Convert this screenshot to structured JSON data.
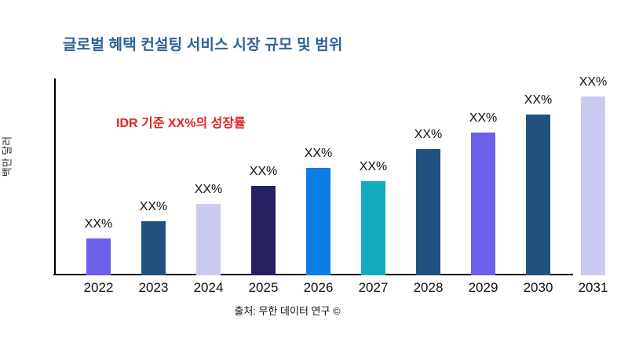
{
  "title": "글로벌 혜택 컨설팅 서비스 시장 규모 및 범위",
  "annotation": "IDR 기준 XX%의 성장률",
  "y_axis_label": "백만 달러",
  "source": "출처: 무한 데이터 연구 ©",
  "colors": {
    "title": "#2E6293",
    "annotation": "#E32222",
    "axis": "#000000",
    "tick_text": "#111111"
  },
  "chart_data": {
    "type": "bar",
    "title": "글로벌 혜택 컨설팅 서비스 시장 규모 및 범위",
    "categories": [
      "2022",
      "2023",
      "2024",
      "2025",
      "2026",
      "2027",
      "2028",
      "2029",
      "2030",
      "2031"
    ],
    "values": [
      47,
      69,
      91,
      114,
      137,
      120,
      161,
      182,
      205,
      228
    ],
    "bar_labels": [
      "XX%",
      "XX%",
      "XX%",
      "XX%",
      "XX%",
      "XX%",
      "XX%",
      "XX%",
      "XX%",
      "XX%"
    ],
    "bar_colors": [
      "#6C5FE9",
      "#21527F",
      "#C9CCF0",
      "#262262",
      "#0D7CE4",
      "#12ABC0",
      "#21527F",
      "#6C5FE9",
      "#21527F",
      "#C9CCF0"
    ],
    "xlabel": "",
    "ylabel": "백만 달러",
    "annotation": "IDR 기준 XX%의 성장률",
    "value_unit": "relative-height",
    "grid": false,
    "legend": false
  }
}
